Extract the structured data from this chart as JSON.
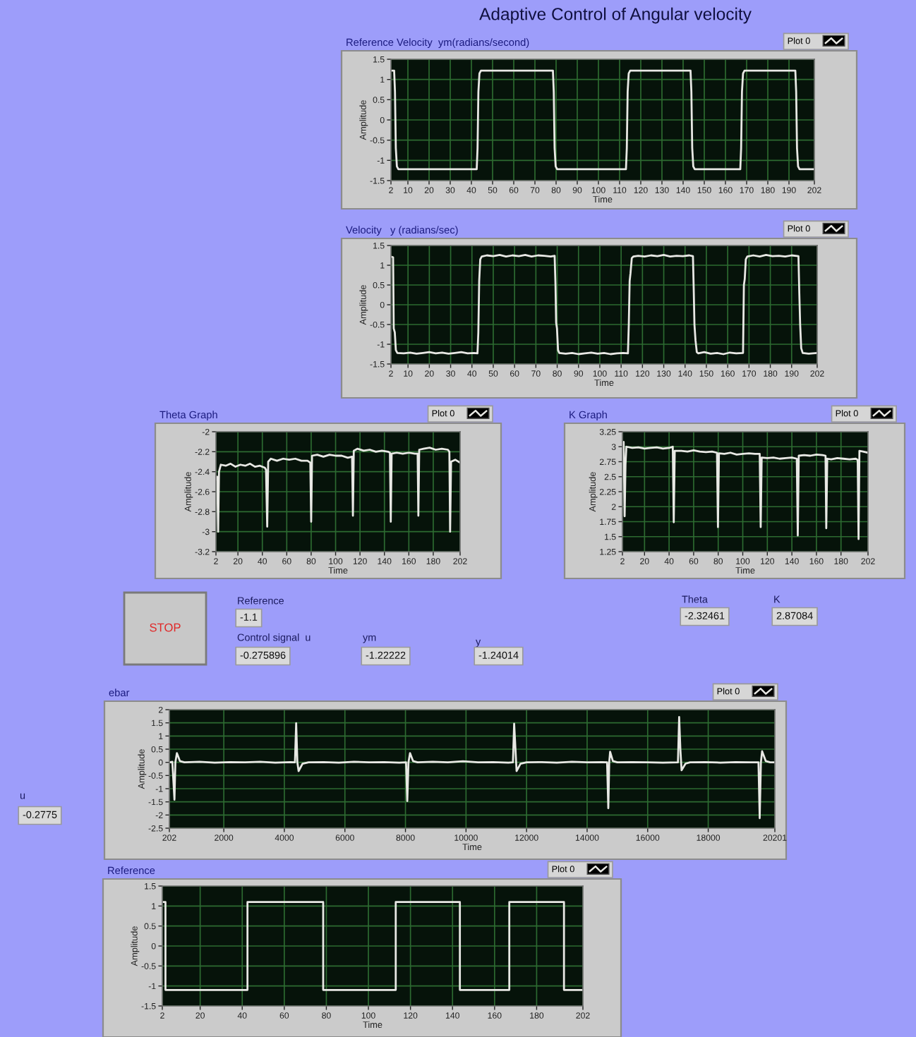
{
  "chart_data": [
    {
      "type": "other",
      "title": "Adaptive Control of Angular velocity"
    },
    {
      "type": "line",
      "title": "Reference Velocity  ym(radians/second)",
      "xlabel": "Time",
      "ylabel": "Amplitude",
      "x": [
        2,
        3.5,
        3.9,
        4.3,
        4.8,
        5.5,
        42.5,
        42.9,
        43.3,
        43.8,
        44.5,
        78.5,
        78.9,
        79.3,
        79.8,
        80.5,
        113,
        113.4,
        113.8,
        114.3,
        115,
        143.5,
        143.9,
        144.3,
        144.8,
        145.5,
        167,
        167.4,
        167.8,
        168.3,
        169,
        193,
        193.4,
        193.8,
        194.3,
        195,
        202
      ],
      "series": [
        {
          "name": "Plot 0",
          "color": "#e8e8e4",
          "values": [
            1.22,
            1.22,
            0.7,
            -0.7,
            -1.15,
            -1.22,
            -1.22,
            -0.7,
            0.7,
            1.15,
            1.22,
            1.22,
            0.7,
            -0.7,
            -1.15,
            -1.22,
            -1.22,
            -0.7,
            0.7,
            1.15,
            1.22,
            1.22,
            0.7,
            -0.7,
            -1.15,
            -1.22,
            -1.22,
            -0.7,
            0.7,
            1.15,
            1.22,
            1.22,
            0.7,
            -0.7,
            -1.15,
            -1.22,
            -1.22
          ]
        }
      ],
      "xlim": [
        2,
        202
      ],
      "ylim": [
        -1.5,
        1.5
      ],
      "xticks": [
        2,
        10,
        20,
        30,
        40,
        50,
        60,
        70,
        80,
        90,
        100,
        110,
        120,
        130,
        140,
        150,
        160,
        170,
        180,
        190,
        202
      ],
      "yticks": [
        -1.5,
        -1,
        -0.5,
        0,
        0.5,
        1,
        1.5
      ],
      "grid": true,
      "legend": "top right"
    },
    {
      "type": "line",
      "title": "Velocity   y (radians/sec)",
      "xlabel": "Time",
      "ylabel": "Amplitude",
      "x": [
        2,
        3,
        3.3,
        3.8,
        4.3,
        5,
        8,
        11,
        14,
        17,
        20,
        23,
        26,
        29,
        32,
        35,
        38,
        41,
        42.6,
        43,
        43.4,
        43.9,
        44.6,
        47,
        50,
        53,
        56,
        59,
        62,
        65,
        68,
        71,
        74,
        77,
        78.8,
        79.2,
        79.5,
        79.9,
        80.4,
        81,
        84,
        87,
        90,
        93,
        96,
        99,
        102,
        105,
        108,
        111,
        113.2,
        113.6,
        114,
        114.4,
        115,
        115.7,
        118,
        121,
        124,
        127,
        130,
        133,
        136,
        139,
        142,
        143.7,
        144.1,
        144.4,
        144.9,
        145.5,
        146.2,
        149,
        152,
        155,
        158,
        161,
        164,
        167.2,
        167.6,
        168,
        168.5,
        169.2,
        172,
        175,
        178,
        181,
        184,
        187,
        190,
        193.2,
        193.6,
        194,
        194.5,
        195.2,
        198,
        202
      ],
      "series": [
        {
          "name": "Plot 0",
          "color": "#e8e8e4",
          "values": [
            1.22,
            1.2,
            -0.6,
            -0.7,
            -1.15,
            -1.22,
            -1.23,
            -1.21,
            -1.24,
            -1.22,
            -1.2,
            -1.23,
            -1.21,
            -1.24,
            -1.22,
            -1.2,
            -1.23,
            -1.22,
            -1.23,
            -0.7,
            0.6,
            1.15,
            1.22,
            1.25,
            1.23,
            1.26,
            1.22,
            1.25,
            1.23,
            1.26,
            1.22,
            1.25,
            1.24,
            1.22,
            1.24,
            0.5,
            -0.45,
            -0.6,
            -1.15,
            -1.22,
            -1.24,
            -1.22,
            -1.25,
            -1.23,
            -1.21,
            -1.24,
            -1.22,
            -1.25,
            -1.23,
            -1.22,
            -1.23,
            -0.5,
            0.6,
            0.8,
            1.18,
            1.22,
            1.24,
            1.22,
            1.25,
            1.23,
            1.26,
            1.22,
            1.24,
            1.23,
            1.25,
            1.23,
            0.3,
            -0.5,
            -0.9,
            -1.2,
            -1.23,
            -1.2,
            -1.24,
            -1.22,
            -1.25,
            -1.21,
            -1.23,
            -1.22,
            0.5,
            0.65,
            1.15,
            1.22,
            1.25,
            1.22,
            1.26,
            1.23,
            1.24,
            1.22,
            1.25,
            1.23,
            0.3,
            -0.5,
            -1.1,
            -1.22,
            -1.24,
            -1.22
          ]
        }
      ],
      "xlim": [
        2,
        202
      ],
      "ylim": [
        -1.5,
        1.5
      ],
      "xticks": [
        2,
        10,
        20,
        30,
        40,
        50,
        60,
        70,
        80,
        90,
        100,
        110,
        120,
        130,
        140,
        150,
        160,
        170,
        180,
        190,
        202
      ],
      "yticks": [
        -1.5,
        -1,
        -0.5,
        0,
        0.5,
        1,
        1.5
      ],
      "grid": true,
      "legend": "top right"
    },
    {
      "type": "line",
      "title": "Theta Graph",
      "xlabel": "Time",
      "ylabel": "Amplitude",
      "x": [
        2,
        3,
        3.8,
        4.5,
        6,
        10,
        14,
        18,
        22,
        26,
        30,
        34,
        38,
        42,
        43,
        44,
        44.8,
        47,
        52,
        57,
        62,
        67,
        72,
        77,
        79.3,
        80,
        80.7,
        85,
        90,
        95,
        100,
        105,
        110,
        113.5,
        114.2,
        114.9,
        118,
        123,
        128,
        133,
        138,
        143,
        144.5,
        145.2,
        145.9,
        150,
        155,
        160,
        165,
        167.2,
        167.8,
        168.5,
        172,
        177,
        182,
        187,
        192,
        193.2,
        193.8,
        194.6,
        198,
        202
      ],
      "series": [
        {
          "name": "Plot 0",
          "color": "#e8e8e4",
          "values": [
            -2.48,
            -2.45,
            -3,
            -2.4,
            -2.33,
            -2.34,
            -2.32,
            -2.35,
            -2.33,
            -2.34,
            -2.32,
            -2.35,
            -2.34,
            -2.36,
            -2.38,
            -2.95,
            -2.3,
            -2.27,
            -2.29,
            -2.27,
            -2.28,
            -2.27,
            -2.29,
            -2.29,
            -2.31,
            -2.9,
            -2.24,
            -2.23,
            -2.25,
            -2.23,
            -2.24,
            -2.24,
            -2.26,
            -2.25,
            -2.84,
            -2.19,
            -2.17,
            -2.19,
            -2.18,
            -2.2,
            -2.19,
            -2.2,
            -2.21,
            -2.9,
            -2.22,
            -2.21,
            -2.22,
            -2.21,
            -2.22,
            -2.22,
            -2.84,
            -2.18,
            -2.17,
            -2.16,
            -2.18,
            -2.17,
            -2.18,
            -2.2,
            -3,
            -2.3,
            -2.28,
            -2.31
          ]
        }
      ],
      "xlim": [
        2,
        202
      ],
      "ylim": [
        -3.2,
        -2
      ],
      "xticks": [
        2,
        20,
        40,
        60,
        80,
        100,
        120,
        140,
        160,
        180,
        202
      ],
      "yticks": [
        -3.2,
        -3,
        -2.8,
        -2.6,
        -2.4,
        -2.2,
        -2
      ],
      "grid": true,
      "legend": "top right"
    },
    {
      "type": "line",
      "title": "K Graph",
      "xlabel": "Time",
      "ylabel": "Amplitude",
      "x": [
        2,
        3,
        3.8,
        4.5,
        5.2,
        10,
        15,
        20,
        25,
        30,
        35,
        40,
        43,
        43.8,
        44.6,
        50,
        55,
        60,
        65,
        70,
        75,
        79,
        79.8,
        80.6,
        85,
        90,
        95,
        100,
        105,
        110,
        113.8,
        114.6,
        115.4,
        120,
        125,
        130,
        135,
        140,
        144,
        144.8,
        145.6,
        150,
        155,
        160,
        165,
        167.4,
        168,
        168.8,
        172,
        177,
        182,
        187,
        192,
        193.6,
        194.3,
        195,
        198,
        202
      ],
      "series": [
        {
          "name": "Plot 0",
          "color": "#e8e8e4",
          "values": [
            3.05,
            3.08,
            1.84,
            2.7,
            3,
            2.98,
            2.99,
            2.97,
            2.98,
            2.99,
            2.97,
            2.98,
            3,
            1.74,
            2.93,
            2.93,
            2.92,
            2.94,
            2.92,
            2.91,
            2.92,
            2.9,
            1.66,
            2.89,
            2.88,
            2.9,
            2.87,
            2.88,
            2.89,
            2.88,
            2.88,
            1.66,
            2.82,
            2.81,
            2.82,
            2.8,
            2.81,
            2.82,
            2.8,
            1.52,
            2.85,
            2.86,
            2.85,
            2.87,
            2.86,
            2.85,
            1.64,
            2.8,
            2.79,
            2.81,
            2.8,
            2.79,
            2.8,
            2.78,
            1.46,
            2.93,
            2.92,
            2.9
          ]
        }
      ],
      "xlim": [
        2,
        202
      ],
      "ylim": [
        1.25,
        3.25
      ],
      "xticks": [
        2,
        20,
        40,
        60,
        80,
        100,
        120,
        140,
        160,
        180,
        202
      ],
      "yticks": [
        1.25,
        1.5,
        1.75,
        2,
        2.25,
        2.5,
        2.75,
        3,
        3.25
      ],
      "grid": true,
      "legend": "top right"
    },
    {
      "type": "other",
      "annotations": [
        "STOP",
        "Reference",
        "-1.1",
        "Control signal  u",
        "-0.275896",
        "ym",
        "-1.22222",
        "y",
        "-1.24014",
        "Theta",
        "-2.32461",
        "K",
        "2.87084"
      ]
    },
    {
      "type": "line",
      "title": "ebar",
      "xlabel": "Time",
      "ylabel": "Amplitude",
      "x": [
        202,
        300,
        370,
        400,
        450,
        550,
        700,
        1200,
        1700,
        2200,
        2700,
        3200,
        3700,
        4200,
        4350,
        4390,
        4430,
        4470,
        4600,
        4800,
        5300,
        5800,
        6300,
        6800,
        7300,
        7800,
        8020,
        8060,
        8100,
        8150,
        8250,
        8400,
        8900,
        9400,
        9900,
        10400,
        10900,
        11400,
        11550,
        11590,
        11620,
        11670,
        11800,
        12000,
        12500,
        13000,
        13500,
        14000,
        14500,
        14660,
        14700,
        14730,
        14760,
        14850,
        15000,
        15500,
        16000,
        16500,
        17000,
        17040,
        17080,
        17120,
        17250,
        17400,
        17900,
        18400,
        18900,
        19400,
        19660,
        19700,
        19740,
        19780,
        19900,
        20050,
        20201
      ],
      "series": [
        {
          "name": "Plot 0",
          "color": "#e8e8e4",
          "values": [
            0,
            0.02,
            -1.42,
            0,
            0.35,
            0.05,
            0,
            0.02,
            -0.01,
            0.01,
            0,
            0.02,
            -0.01,
            0.01,
            0,
            1.49,
            0,
            -0.33,
            -0.05,
            0,
            0.01,
            -0.01,
            0.02,
            0,
            0.01,
            -0.01,
            0,
            -1.47,
            0,
            0.35,
            0.05,
            0,
            0.02,
            0,
            0.04,
            0,
            0.01,
            -0.01,
            0,
            1.47,
            0.8,
            -0.33,
            -0.05,
            0,
            0.01,
            -0.01,
            0.02,
            0,
            0.01,
            0,
            -1.74,
            0,
            0.4,
            0.05,
            0,
            0.01,
            0,
            -0.01,
            0,
            1.72,
            0.5,
            -0.3,
            -0.05,
            0,
            0.01,
            -0.01,
            0.01,
            0,
            0,
            -2.12,
            0,
            0.42,
            0.05,
            0,
            0
          ]
        }
      ],
      "xlim": [
        202,
        20201
      ],
      "ylim": [
        -2.5,
        2
      ],
      "xticks": [
        202,
        2000,
        4000,
        6000,
        8000,
        10000,
        12000,
        14000,
        16000,
        18000,
        20201
      ],
      "yticks": [
        -2.5,
        -2,
        -1.5,
        -1,
        -0.5,
        0,
        0.5,
        1,
        1.5,
        2
      ],
      "grid": true,
      "legend": "top right"
    },
    {
      "type": "other",
      "annotations": [
        "u",
        "-0.2775"
      ]
    },
    {
      "type": "step",
      "title": "Reference",
      "xlabel": "Time",
      "ylabel": "Amplitude",
      "x": [
        2,
        3.5,
        42.5,
        78.5,
        113,
        143.5,
        167,
        193,
        202
      ],
      "series": [
        {
          "name": "Plot 0",
          "color": "#e8e8e4",
          "values": [
            1.1,
            -1.1,
            1.1,
            -1.1,
            1.1,
            -1.1,
            1.1,
            -1.1,
            -1.1
          ]
        }
      ],
      "xlim": [
        2,
        202
      ],
      "ylim": [
        -1.5,
        1.5
      ],
      "xticks": [
        2,
        20,
        40,
        60,
        80,
        100,
        120,
        140,
        160,
        180,
        202
      ],
      "yticks": [
        -1.5,
        -1,
        -0.5,
        0,
        0.5,
        1,
        1.5
      ],
      "grid": true,
      "legend": "top right"
    }
  ]
}
